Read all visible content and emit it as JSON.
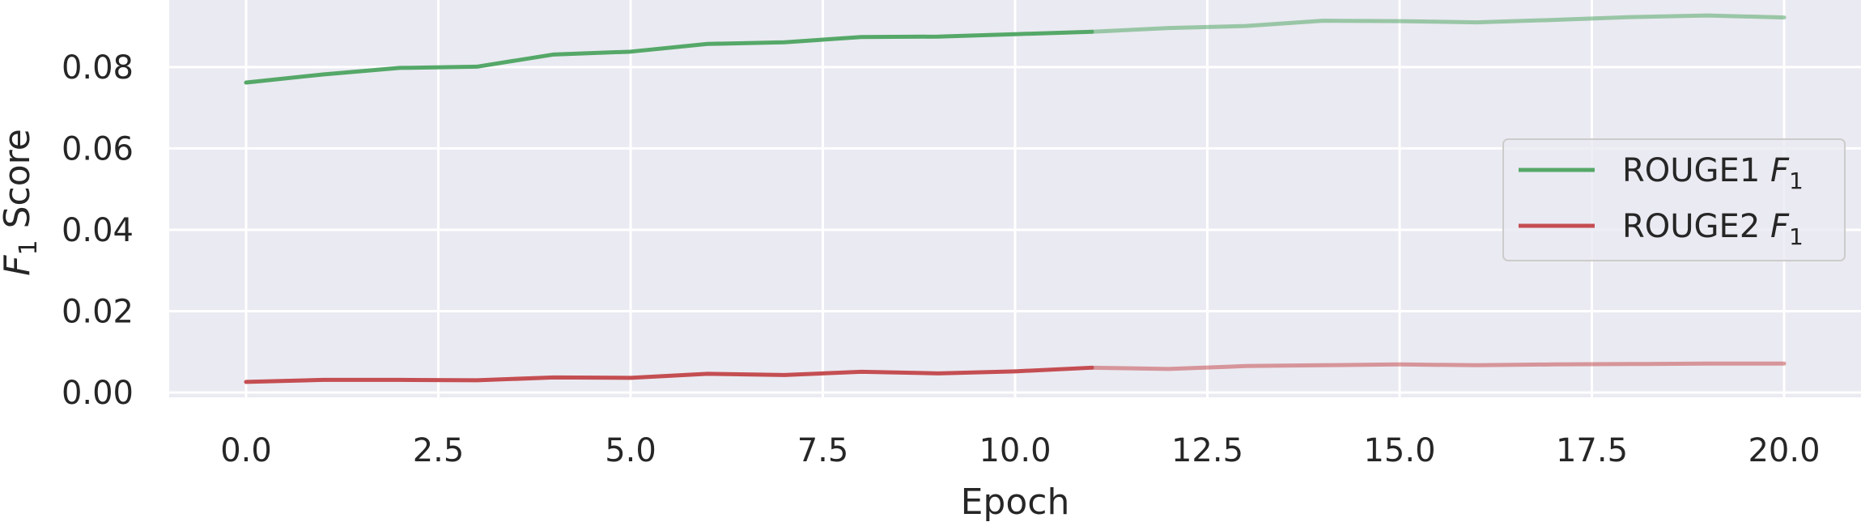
{
  "chart_data": {
    "type": "line",
    "xlabel": "Epoch",
    "ylabel_main": "F",
    "ylabel_sub": "1",
    "ylabel_rest": " Score",
    "xlim": [
      -1.0,
      21.0
    ],
    "ylim": [
      -0.0012,
      0.0965
    ],
    "xticks": [
      0.0,
      2.5,
      5.0,
      7.5,
      10.0,
      12.5,
      15.0,
      17.5,
      20.0
    ],
    "xtick_labels": [
      "0.0",
      "2.5",
      "5.0",
      "7.5",
      "10.0",
      "12.5",
      "15.0",
      "17.5",
      "20.0"
    ],
    "yticks": [
      0.0,
      0.02,
      0.04,
      0.06,
      0.08
    ],
    "ytick_labels": [
      "0.00",
      "0.02",
      "0.04",
      "0.06",
      "0.08"
    ],
    "grid": true,
    "legend_position": "center-right",
    "highlight_until_x": 11,
    "x": [
      0,
      1,
      2,
      3,
      4,
      5,
      6,
      7,
      8,
      9,
      10,
      11,
      12,
      13,
      14,
      15,
      16,
      17,
      18,
      19,
      20
    ],
    "series": [
      {
        "legend_main": "ROUGE1 ",
        "legend_italic": "F",
        "legend_sub": "1",
        "color": "#55a868",
        "values": [
          0.0762,
          0.0782,
          0.0798,
          0.0801,
          0.0831,
          0.0838,
          0.0857,
          0.0861,
          0.0874,
          0.0875,
          0.0881,
          0.0887,
          0.0896,
          0.0901,
          0.0914,
          0.0913,
          0.091,
          0.0916,
          0.0923,
          0.0927,
          0.0922
        ]
      },
      {
        "legend_main": "ROUGE2 ",
        "legend_italic": "F",
        "legend_sub": "1",
        "color": "#c44e52",
        "values": [
          0.0026,
          0.0031,
          0.0031,
          0.003,
          0.0037,
          0.0036,
          0.0046,
          0.0043,
          0.0051,
          0.0047,
          0.0052,
          0.0061,
          0.0058,
          0.0065,
          0.0067,
          0.0069,
          0.0067,
          0.0069,
          0.007,
          0.0071,
          0.0071
        ]
      }
    ]
  }
}
